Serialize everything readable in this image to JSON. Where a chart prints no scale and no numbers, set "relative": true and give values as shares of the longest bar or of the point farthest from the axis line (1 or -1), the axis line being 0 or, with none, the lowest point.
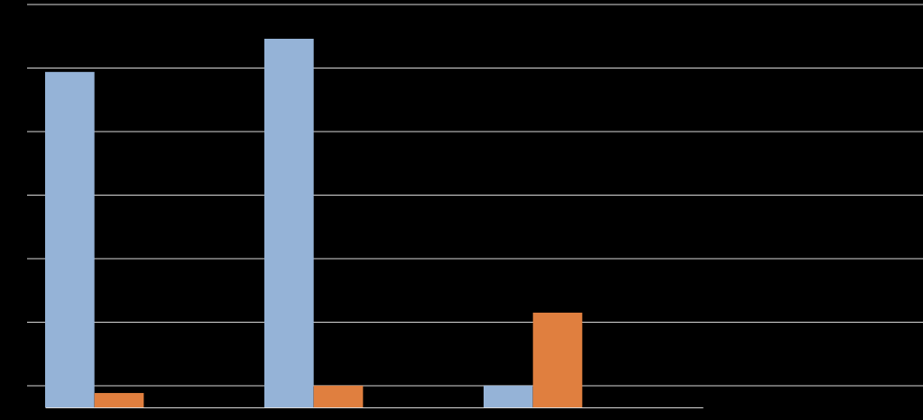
{
  "chart_data": {
    "type": "bar",
    "relative": true,
    "grid": true,
    "categories": [
      null,
      null,
      null
    ],
    "series": [
      {
        "color": "#95b3d7",
        "values": [
          0.91,
          1,
          0.059
        ]
      },
      {
        "color": "#e07f3f",
        "values": [
          0.039,
          0.059,
          0.257
        ]
      }
    ]
  }
}
